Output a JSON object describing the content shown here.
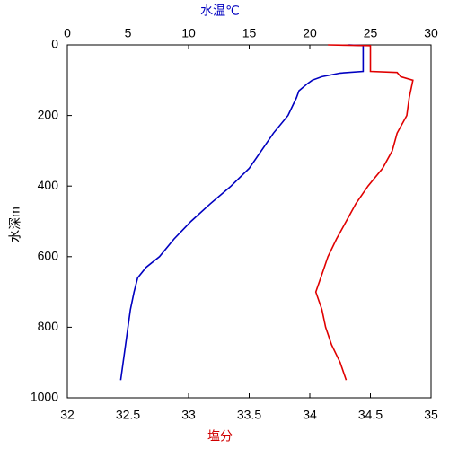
{
  "chart_data": {
    "type": "line",
    "xlabel": "塩分",
    "x2label": "水温℃",
    "ylabel": "水深m",
    "xlabel_color": "#d00000",
    "x2label_color": "#0000c0",
    "xlim": [
      32,
      35
    ],
    "xticks": [
      32,
      32.5,
      33,
      33.5,
      34,
      34.5,
      35
    ],
    "x2lim": [
      0,
      30
    ],
    "x2ticks": [
      0,
      5,
      10,
      15,
      20,
      25,
      30
    ],
    "ylim": [
      0,
      1000
    ],
    "yticks": [
      0,
      200,
      400,
      600,
      800,
      1000
    ],
    "y_inverted": true,
    "series": [
      {
        "color": "#0000c0",
        "axis": "x2",
        "x": [
          23.2,
          24.4,
          24.4,
          22.5,
          21.0,
          20.2,
          19.8,
          19.1,
          18.9,
          18.2,
          17.0,
          16.0,
          15.0,
          13.5,
          11.8,
          10.2,
          8.8,
          7.6,
          6.5,
          5.8,
          5.5,
          5.2,
          5.0,
          4.8,
          4.6,
          4.4
        ],
        "y": [
          0,
          2,
          75,
          80,
          90,
          100,
          110,
          130,
          150,
          200,
          250,
          300,
          350,
          400,
          450,
          500,
          550,
          600,
          630,
          660,
          700,
          750,
          800,
          850,
          900,
          950
        ]
      },
      {
        "color": "#e00000",
        "axis": "x",
        "x": [
          34.15,
          34.5,
          34.5,
          34.72,
          34.75,
          34.85,
          34.82,
          34.8,
          34.72,
          34.68,
          34.6,
          34.48,
          34.38,
          34.3,
          34.22,
          34.15,
          34.1,
          34.05,
          34.1,
          34.13,
          34.18,
          34.25,
          34.3
        ],
        "y": [
          0,
          2,
          75,
          78,
          90,
          100,
          150,
          200,
          250,
          300,
          350,
          400,
          450,
          500,
          550,
          600,
          650,
          700,
          750,
          800,
          850,
          900,
          950
        ]
      }
    ]
  }
}
